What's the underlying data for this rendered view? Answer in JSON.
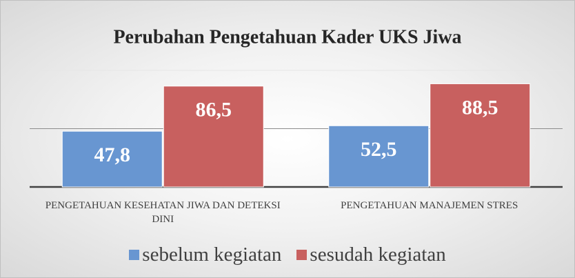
{
  "chart_data": {
    "type": "bar",
    "title": "Perubahan Pengetahuan Kader UKS Jiwa",
    "categories": [
      "PENGETAHUAN KESEHATAN JIWA DAN DETEKSI DINI",
      "PENGETAHUAN MANAJEMEN STRES"
    ],
    "series": [
      {
        "name": "sebelum kegiatan",
        "color": "#6896d1",
        "values": [
          47.8,
          52.5
        ],
        "value_labels": [
          "47,8",
          "52,5"
        ]
      },
      {
        "name": "sesudah kegiatan",
        "color": "#c8605f",
        "values": [
          86.5,
          88.5
        ],
        "value_labels": [
          "86,5",
          "88,5"
        ]
      }
    ],
    "ylim": [
      0,
      100
    ],
    "yticks": [
      0,
      50,
      100
    ],
    "grid": true,
    "legend": "bottom"
  }
}
